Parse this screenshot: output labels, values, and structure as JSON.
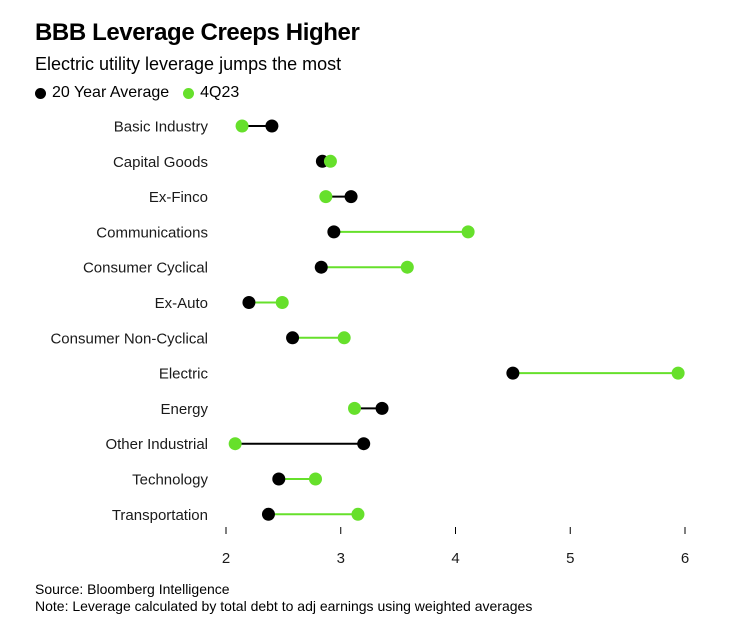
{
  "chart_data": {
    "type": "dot-range",
    "title": "BBB Leverage Creeps Higher",
    "subtitle": "Electric utility leverage jumps the most",
    "categories": [
      "Basic Industry",
      "Capital Goods",
      "Ex-Finco",
      "Communications",
      "Consumer Cyclical",
      "Ex-Auto",
      "Consumer Non-Cyclical",
      "Electric",
      "Energy",
      "Other Industrial",
      "Technology",
      "Transportation"
    ],
    "series": [
      {
        "name": "20 Year Average",
        "color": "#000000",
        "values": [
          2.4,
          2.84,
          3.09,
          2.94,
          2.83,
          2.2,
          2.58,
          4.5,
          3.36,
          3.2,
          2.46,
          2.37
        ]
      },
      {
        "name": "4Q23",
        "color": "#66e02b",
        "values": [
          2.14,
          2.91,
          2.87,
          4.11,
          3.58,
          2.49,
          3.03,
          5.94,
          3.12,
          2.08,
          2.78,
          3.15
        ]
      }
    ],
    "xlim": [
      1.85,
      6.05
    ],
    "xticks": [
      2,
      3,
      4,
      5,
      6
    ],
    "xlabel": "",
    "ylabel": "",
    "grid": false,
    "legend_position": "top-left"
  },
  "footer": {
    "source": "Source: Bloomberg Intelligence",
    "note": "Note: Leverage calculated by total debt to adj earnings using weighted averages"
  }
}
